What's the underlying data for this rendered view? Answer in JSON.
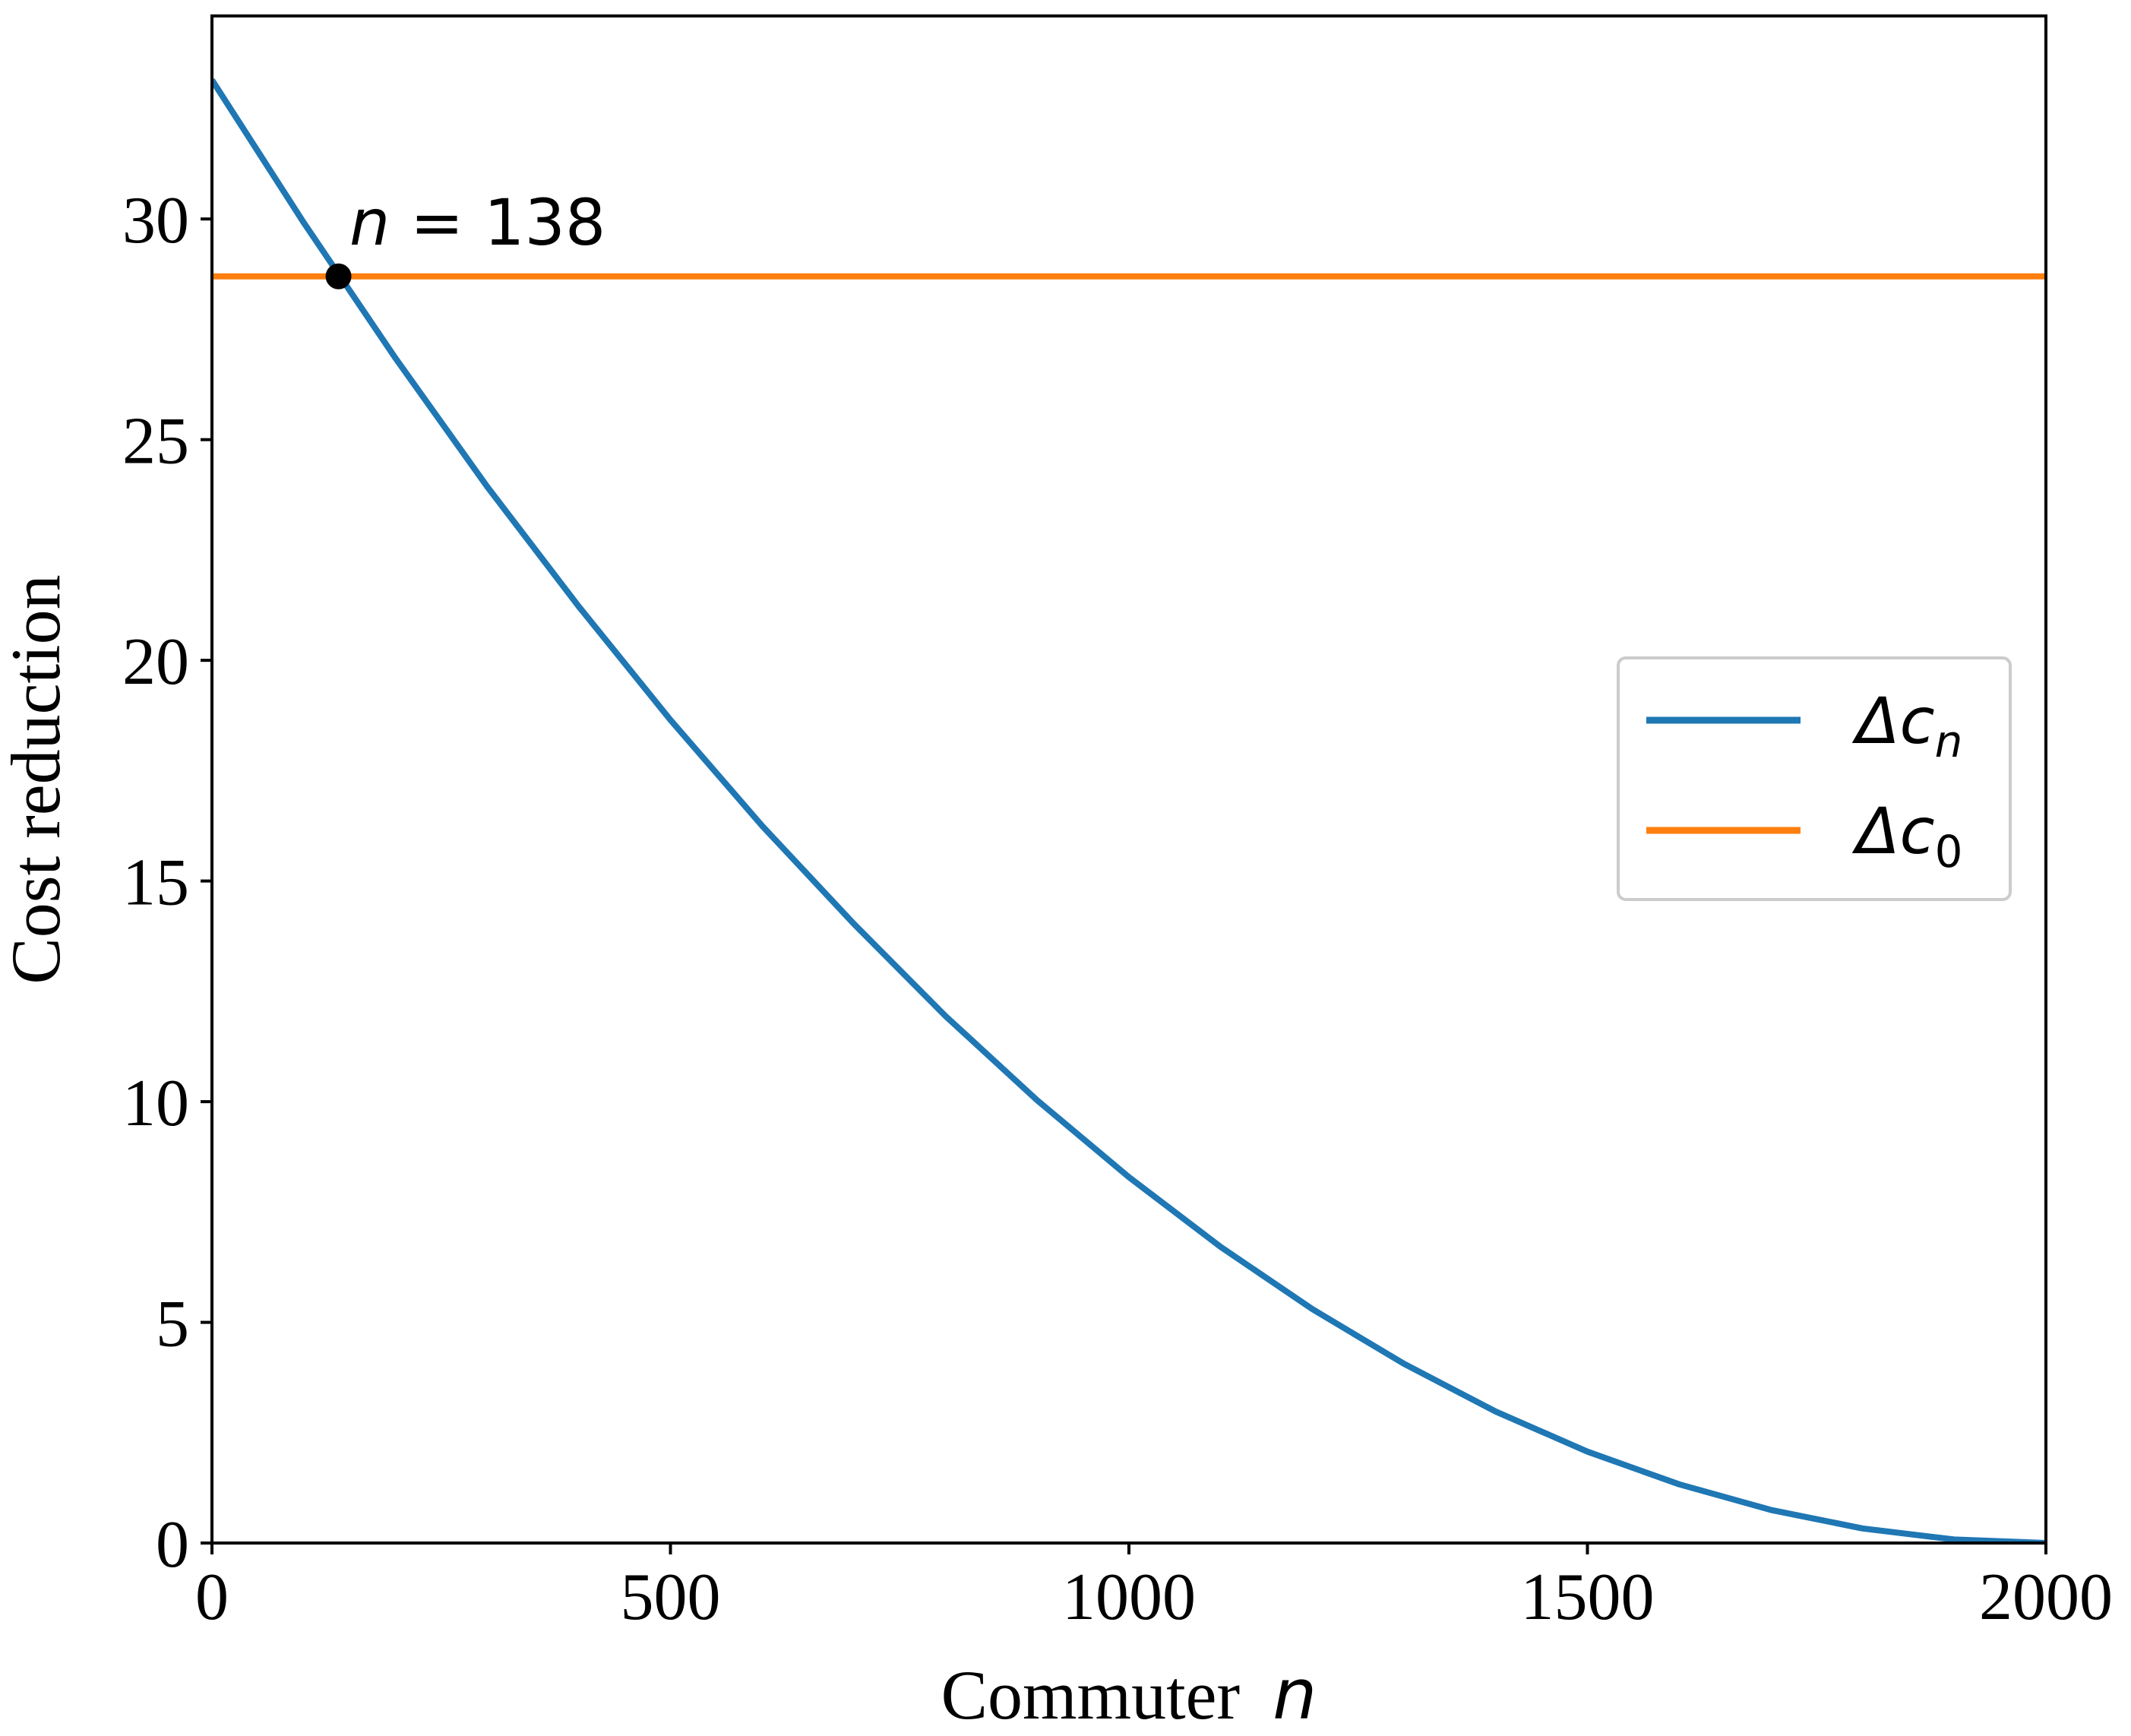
{
  "chart_data": {
    "type": "line",
    "title": "",
    "xlabel": "Commuter",
    "xlabel_var": "n",
    "ylabel": "Cost reduction",
    "xlim": [
      0,
      2000
    ],
    "ylim": [
      0,
      34.6
    ],
    "xticks": [
      0,
      500,
      1000,
      1500,
      2000
    ],
    "yticks": [
      0,
      5,
      10,
      15,
      20,
      25,
      30
    ],
    "grid": false,
    "legend_position": "center-right",
    "series": [
      {
        "name": "Δc_n",
        "legend_main": "Δc",
        "legend_sub": "n",
        "color": "#1f77b4",
        "x": [
          0,
          100,
          200,
          300,
          400,
          500,
          600,
          700,
          800,
          900,
          1000,
          1100,
          1200,
          1300,
          1400,
          1500,
          1600,
          1700,
          1800,
          1900,
          2000
        ],
        "y": [
          33.15,
          29.92,
          26.85,
          23.94,
          21.22,
          18.65,
          16.25,
          14.03,
          11.94,
          10.03,
          8.29,
          6.71,
          5.3,
          4.06,
          2.98,
          2.07,
          1.33,
          0.75,
          0.33,
          0.08,
          0.0
        ]
      },
      {
        "name": "Δc_0",
        "legend_main": "Δc",
        "legend_sub": "0",
        "color": "#ff7f0e",
        "x": [
          0,
          2000
        ],
        "y": [
          28.7,
          28.7
        ]
      }
    ],
    "annotations": [
      {
        "var": "n",
        "text": " = 138",
        "x": 138,
        "y": 28.7,
        "marker_color": "#000000"
      }
    ]
  }
}
